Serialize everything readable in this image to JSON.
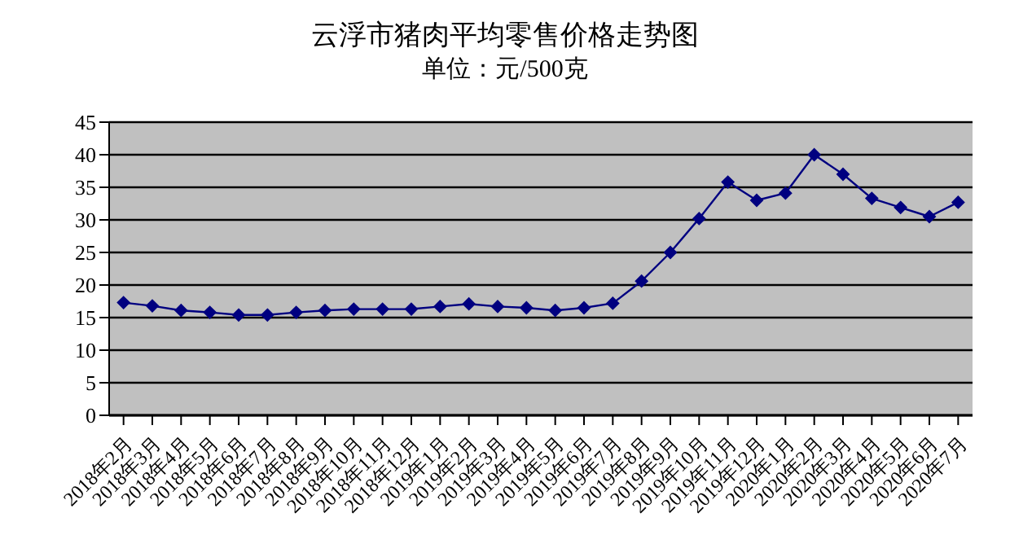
{
  "chart_data": {
    "type": "line",
    "title": "云浮市猪肉平均零售价格走势图",
    "subtitle": "单位：元/500克",
    "categories": [
      "2018年2月",
      "2018年3月",
      "2018年4月",
      "2018年5月",
      "2018年6月",
      "2018年7月",
      "2018年8月",
      "2018年9月",
      "2018年10月",
      "2018年11月",
      "2018年12月",
      "2019年1月",
      "2019年2月",
      "2019年3月",
      "2019年4月",
      "2019年5月",
      "2019年6月",
      "2019年7月",
      "2019年8月",
      "2019年9月",
      "2019年10月",
      "2019年11月",
      "2019年12月",
      "2020年1月",
      "2020年2月",
      "2020年3月",
      "2020年4月",
      "2020年5月",
      "2020年6月",
      "2020年7月"
    ],
    "series": [
      {
        "color": "#000080",
        "values": [
          17.3,
          16.8,
          16.1,
          15.8,
          15.4,
          15.4,
          15.8,
          16.1,
          16.3,
          16.3,
          16.3,
          16.7,
          17.1,
          16.7,
          16.5,
          16.1,
          16.5,
          17.2,
          20.6,
          25.0,
          30.2,
          35.8,
          33.0,
          34.1,
          40.0,
          37.0,
          33.3,
          31.9,
          30.5,
          32.7
        ]
      }
    ],
    "ylim": [
      0,
      45
    ],
    "yticks": [
      0,
      5,
      10,
      15,
      20,
      25,
      30,
      35,
      40,
      45
    ],
    "grid": "y",
    "marker": "diamond",
    "line_style": "solid",
    "legend": false
  }
}
